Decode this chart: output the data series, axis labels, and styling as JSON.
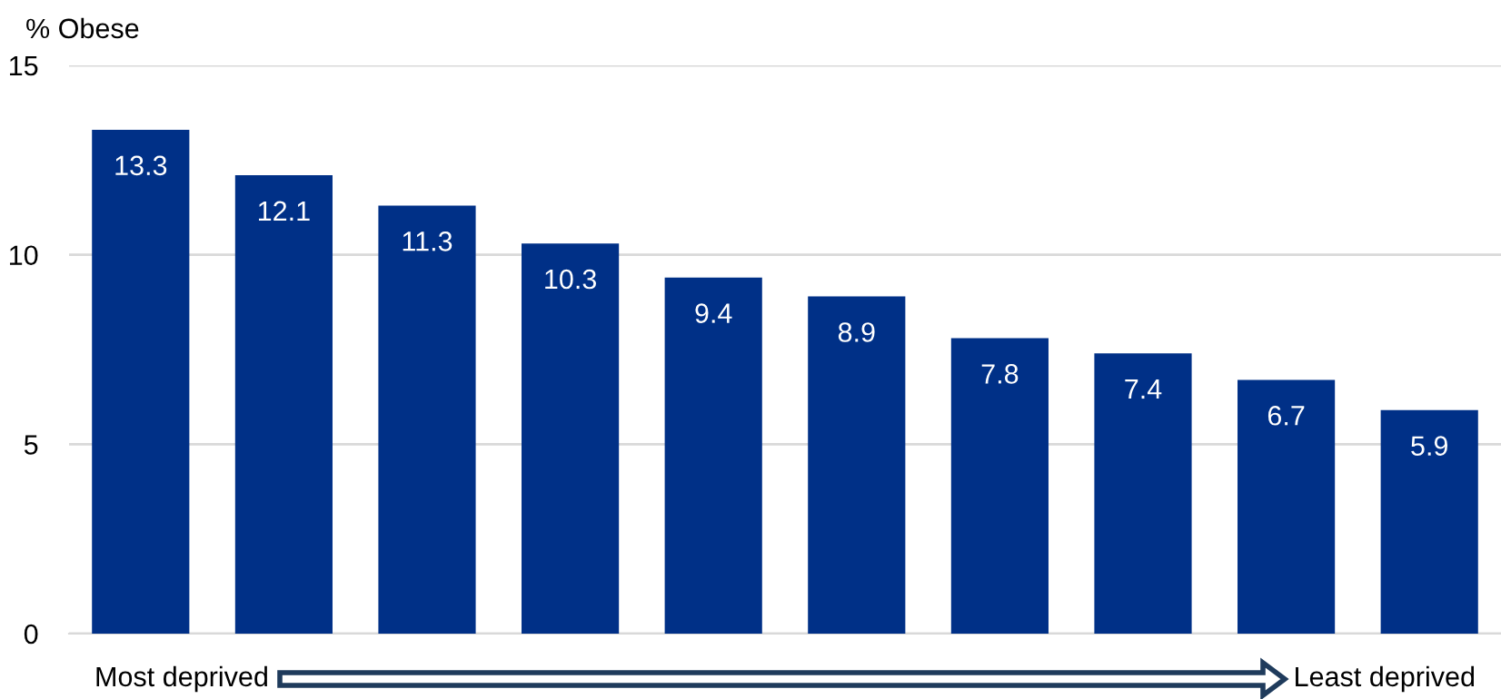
{
  "chart_data": {
    "type": "bar",
    "ylabel": "% Obese",
    "categories": [
      null,
      null,
      null,
      null,
      null,
      null,
      null,
      null,
      null,
      null
    ],
    "values": [
      13.3,
      12.1,
      11.3,
      10.3,
      9.4,
      8.9,
      7.8,
      7.4,
      6.7,
      5.9
    ],
    "color": "#003087",
    "data_labels": true,
    "ylim": [
      0,
      15
    ],
    "yticks": [
      0,
      5,
      10,
      15
    ],
    "grid": "y",
    "legend": false,
    "annotations": [
      "Most deprived",
      "Least deprived"
    ]
  }
}
